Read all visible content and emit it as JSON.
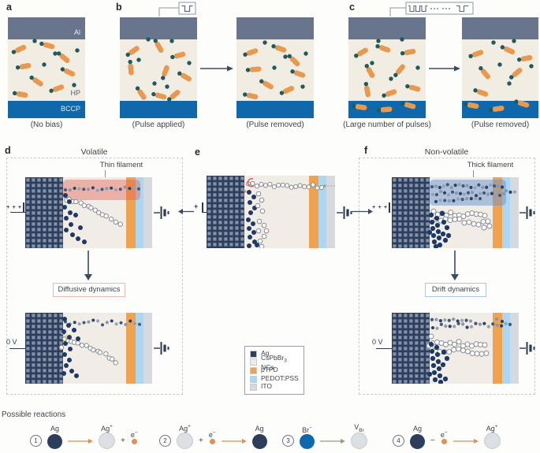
{
  "colors": {
    "al": "#68758c",
    "hp": "#f1ede3",
    "bccp": "#0f68a9",
    "ag": "#2d3e5d",
    "ptpd": "#f0a24f",
    "pedot": "#abd7f2",
    "ito": "#d6dade",
    "rod": "#e8994f",
    "teal_dot": "#1e5a5e",
    "ion_navy": "#1d3a66",
    "volatile_band": "rgba(224,96,84,0.42)",
    "nonvolatile_band": "rgba(104,148,206,0.5)",
    "reaction_orange": "#e09050",
    "reaction_green": "#8aa27d"
  },
  "panels": {
    "a": {
      "label": "a",
      "caption": "(No bias)",
      "al": "Al",
      "hp": "HP",
      "bccp": "BCCP"
    },
    "b": {
      "label": "b",
      "caption_left": "(Pulse applied)",
      "caption_right": "(Pulse removed)"
    },
    "c": {
      "label": "c",
      "caption_left": "(Large number of pulses)",
      "caption_right": "(Pulse removed)"
    },
    "d": {
      "label": "d",
      "title": "Volatile",
      "filament": "Thin filament",
      "bias": "+ + +",
      "bias_zero": "0 V",
      "dynamics": "Diffusive dynamics"
    },
    "e": {
      "label": "e",
      "bias": "+"
    },
    "f": {
      "label": "f",
      "title": "Non-volatile",
      "filament": "Thick filament",
      "bias": "+ + +",
      "bias_zero": "0 V",
      "dynamics": "Drift dynamics"
    }
  },
  "legend": {
    "items": [
      {
        "name": "Ag",
        "color": "#2d3e5d"
      },
      {
        "name": "CsPbBr",
        "sub": "3",
        "suffix": " NCs",
        "color": "#f1ede3"
      },
      {
        "name": "pTPD",
        "color": "#f0a24f"
      },
      {
        "name": "PEDOT:PSS",
        "color": "#abd7f2"
      },
      {
        "name": "ITO",
        "color": "#d6dade"
      }
    ]
  },
  "reactions": {
    "title": "Possible reactions",
    "items": [
      {
        "num": "1",
        "tokens": [
          {
            "k": "sp",
            "main": "Ag",
            "fill": "#2d3e5d"
          },
          {
            "k": "arrow",
            "color": "#e09050"
          },
          {
            "k": "sp",
            "main": "Ag",
            "sup": "+",
            "fill": "#dcdfe3"
          },
          {
            "k": "op",
            "text": "+"
          },
          {
            "k": "el",
            "main": "e",
            "sup": "−"
          }
        ]
      },
      {
        "num": "2",
        "tokens": [
          {
            "k": "sp",
            "main": "Ag",
            "sup": "+",
            "fill": "#dcdfe3"
          },
          {
            "k": "op",
            "text": "+"
          },
          {
            "k": "el",
            "main": "e",
            "sup": "−"
          },
          {
            "k": "arrow",
            "color": "#e09050"
          },
          {
            "k": "sp",
            "main": "Ag",
            "fill": "#2d3e5d"
          }
        ]
      },
      {
        "num": "3",
        "tokens": [
          {
            "k": "sp",
            "main": "Br",
            "sup": "−",
            "fill": "#0f68a9"
          },
          {
            "k": "arrow",
            "color": "#8aa27d"
          },
          {
            "k": "sp",
            "main": "V",
            "sub": "Br",
            "fill": "#dcdfe3"
          }
        ]
      },
      {
        "num": "4",
        "tokens": [
          {
            "k": "sp",
            "main": "Ag",
            "fill": "#2d3e5d"
          },
          {
            "k": "op",
            "text": "−"
          },
          {
            "k": "el",
            "main": "e",
            "sup": "−"
          },
          {
            "k": "arrow",
            "color": "#e09050"
          },
          {
            "k": "sp",
            "main": "Ag",
            "sup": "+",
            "fill": "#dcdfe3"
          }
        ]
      }
    ]
  }
}
